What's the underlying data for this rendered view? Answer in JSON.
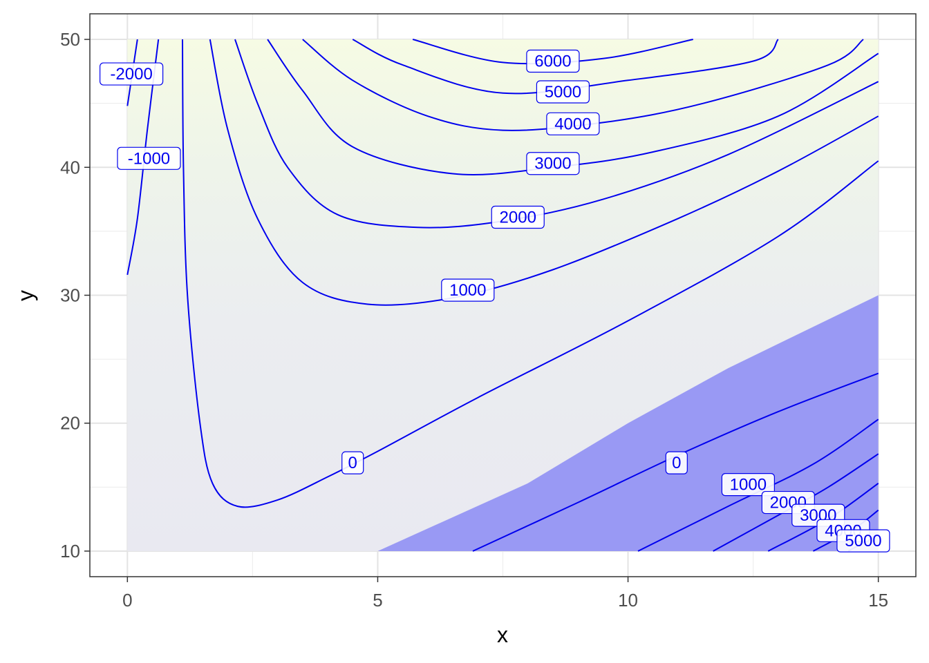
{
  "chart_data": {
    "type": "contour",
    "title": "",
    "xlabel": "x",
    "ylabel": "y",
    "xlim": [
      -0.75,
      15.75
    ],
    "ylim": [
      8.0,
      52.0
    ],
    "grid": true,
    "x_ticks": [
      0,
      5,
      10,
      15
    ],
    "y_ticks": [
      10,
      20,
      30,
      40,
      50
    ],
    "x_tick_labels": [
      "0",
      "5",
      "10",
      "15"
    ],
    "y_tick_labels": [
      "10",
      "20",
      "30",
      "40",
      "50"
    ],
    "fill_region": {
      "x_range": [
        0,
        15
      ],
      "y_range": [
        10,
        50
      ]
    },
    "shaded_region": {
      "color": "#9999f4",
      "boundary": [
        [
          5.0,
          10.0
        ],
        [
          8.0,
          15.3
        ],
        [
          10.0,
          20.0
        ],
        [
          12.0,
          24.3
        ],
        [
          15.0,
          30.0
        ]
      ]
    },
    "contour_lines": [
      {
        "level": -2000,
        "points": [
          [
            0.0,
            44.8
          ],
          [
            0.2,
            50.0
          ]
        ]
      },
      {
        "level": -1000,
        "points": [
          [
            0.0,
            31.6
          ],
          [
            0.2,
            36.0
          ],
          [
            0.4,
            43.0
          ],
          [
            0.62,
            50.0
          ]
        ]
      },
      {
        "level": 0,
        "points": [
          [
            1.1,
            50.0
          ],
          [
            1.12,
            40.0
          ],
          [
            1.2,
            30.0
          ],
          [
            1.45,
            20.0
          ],
          [
            1.7,
            15.3
          ],
          [
            2.2,
            13.5
          ],
          [
            3.0,
            14.0
          ],
          [
            4.0,
            15.8
          ],
          [
            5.0,
            17.8
          ],
          [
            7.0,
            22.0
          ],
          [
            10.0,
            28.0
          ],
          [
            13.0,
            34.6
          ],
          [
            15.0,
            40.5
          ]
        ]
      },
      {
        "level": 1000,
        "points": [
          [
            1.65,
            50.0
          ],
          [
            2.0,
            43.0
          ],
          [
            2.6,
            36.0
          ],
          [
            3.5,
            31.0
          ],
          [
            4.8,
            29.3
          ],
          [
            6.5,
            29.8
          ],
          [
            8.5,
            32.0
          ],
          [
            11.0,
            36.0
          ],
          [
            13.0,
            39.7
          ],
          [
            15.0,
            44.0
          ]
        ]
      },
      {
        "level": 2000,
        "points": [
          [
            2.15,
            50.0
          ],
          [
            2.6,
            45.0
          ],
          [
            3.2,
            40.0
          ],
          [
            4.2,
            36.3
          ],
          [
            5.8,
            35.3
          ],
          [
            7.5,
            35.8
          ],
          [
            9.5,
            37.5
          ],
          [
            12.0,
            41.0
          ],
          [
            15.0,
            46.7
          ]
        ]
      },
      {
        "level": 3000,
        "points": [
          [
            2.8,
            50.0
          ],
          [
            3.5,
            46.0
          ],
          [
            4.5,
            41.6
          ],
          [
            6.5,
            39.5
          ],
          [
            8.5,
            40.0
          ],
          [
            10.5,
            41.2
          ],
          [
            13.0,
            44.0
          ],
          [
            15.0,
            48.9
          ]
        ]
      },
      {
        "level": 4000,
        "points": [
          [
            3.5,
            50.0
          ],
          [
            4.5,
            46.8
          ],
          [
            6.0,
            44.0
          ],
          [
            7.5,
            42.9
          ],
          [
            9.5,
            43.5
          ],
          [
            11.5,
            45.0
          ],
          [
            14.0,
            48.0
          ],
          [
            14.7,
            50.0
          ]
        ]
      },
      {
        "level": 5000,
        "points": [
          [
            4.5,
            50.0
          ],
          [
            5.5,
            48.0
          ],
          [
            7.5,
            45.8
          ],
          [
            10.0,
            46.8
          ],
          [
            12.5,
            48.3
          ],
          [
            13.0,
            50.0
          ]
        ]
      },
      {
        "level": 6000,
        "points": [
          [
            5.7,
            50.0
          ],
          [
            7.5,
            48.2
          ],
          [
            9.5,
            48.5
          ],
          [
            11.3,
            50.0
          ]
        ]
      },
      {
        "level": 0,
        "points": [
          [
            6.9,
            10.0
          ],
          [
            9.0,
            13.8
          ],
          [
            11.0,
            17.5
          ],
          [
            13.0,
            20.9
          ],
          [
            15.0,
            23.9
          ]
        ]
      },
      {
        "level": 1000,
        "points": [
          [
            10.2,
            10.0
          ],
          [
            12.0,
            13.5
          ],
          [
            13.7,
            16.8
          ],
          [
            15.0,
            20.3
          ]
        ]
      },
      {
        "level": 2000,
        "points": [
          [
            11.7,
            10.0
          ],
          [
            13.0,
            12.8
          ],
          [
            14.0,
            15.0
          ],
          [
            15.0,
            17.6
          ]
        ]
      },
      {
        "level": 3000,
        "points": [
          [
            12.8,
            10.0
          ],
          [
            14.0,
            12.5
          ],
          [
            15.0,
            15.3
          ]
        ]
      },
      {
        "level": 4000,
        "points": [
          [
            13.7,
            10.0
          ],
          [
            14.5,
            11.7
          ],
          [
            15.0,
            13.2
          ]
        ]
      },
      {
        "level": 5000,
        "points": [
          [
            14.4,
            10.0
          ],
          [
            15.0,
            11.3
          ]
        ]
      }
    ],
    "contour_labels": [
      {
        "text": "-2000",
        "x": 0.08,
        "y": 47.3
      },
      {
        "text": "-1000",
        "x": 0.43,
        "y": 40.7
      },
      {
        "text": "6000",
        "x": 8.5,
        "y": 48.3
      },
      {
        "text": "5000",
        "x": 8.7,
        "y": 45.9
      },
      {
        "text": "4000",
        "x": 8.9,
        "y": 43.4
      },
      {
        "text": "3000",
        "x": 8.5,
        "y": 40.3
      },
      {
        "text": "2000",
        "x": 7.8,
        "y": 36.1
      },
      {
        "text": "1000",
        "x": 6.8,
        "y": 30.4
      },
      {
        "text": "0",
        "x": 4.5,
        "y": 16.9
      },
      {
        "text": "0",
        "x": 10.97,
        "y": 16.9
      },
      {
        "text": "1000",
        "x": 12.4,
        "y": 15.2
      },
      {
        "text": "2000",
        "x": 13.2,
        "y": 13.8
      },
      {
        "text": "3000",
        "x": 13.8,
        "y": 12.8
      },
      {
        "text": "4000",
        "x": 14.3,
        "y": 11.6
      },
      {
        "text": "5000",
        "x": 14.7,
        "y": 10.8
      }
    ]
  }
}
